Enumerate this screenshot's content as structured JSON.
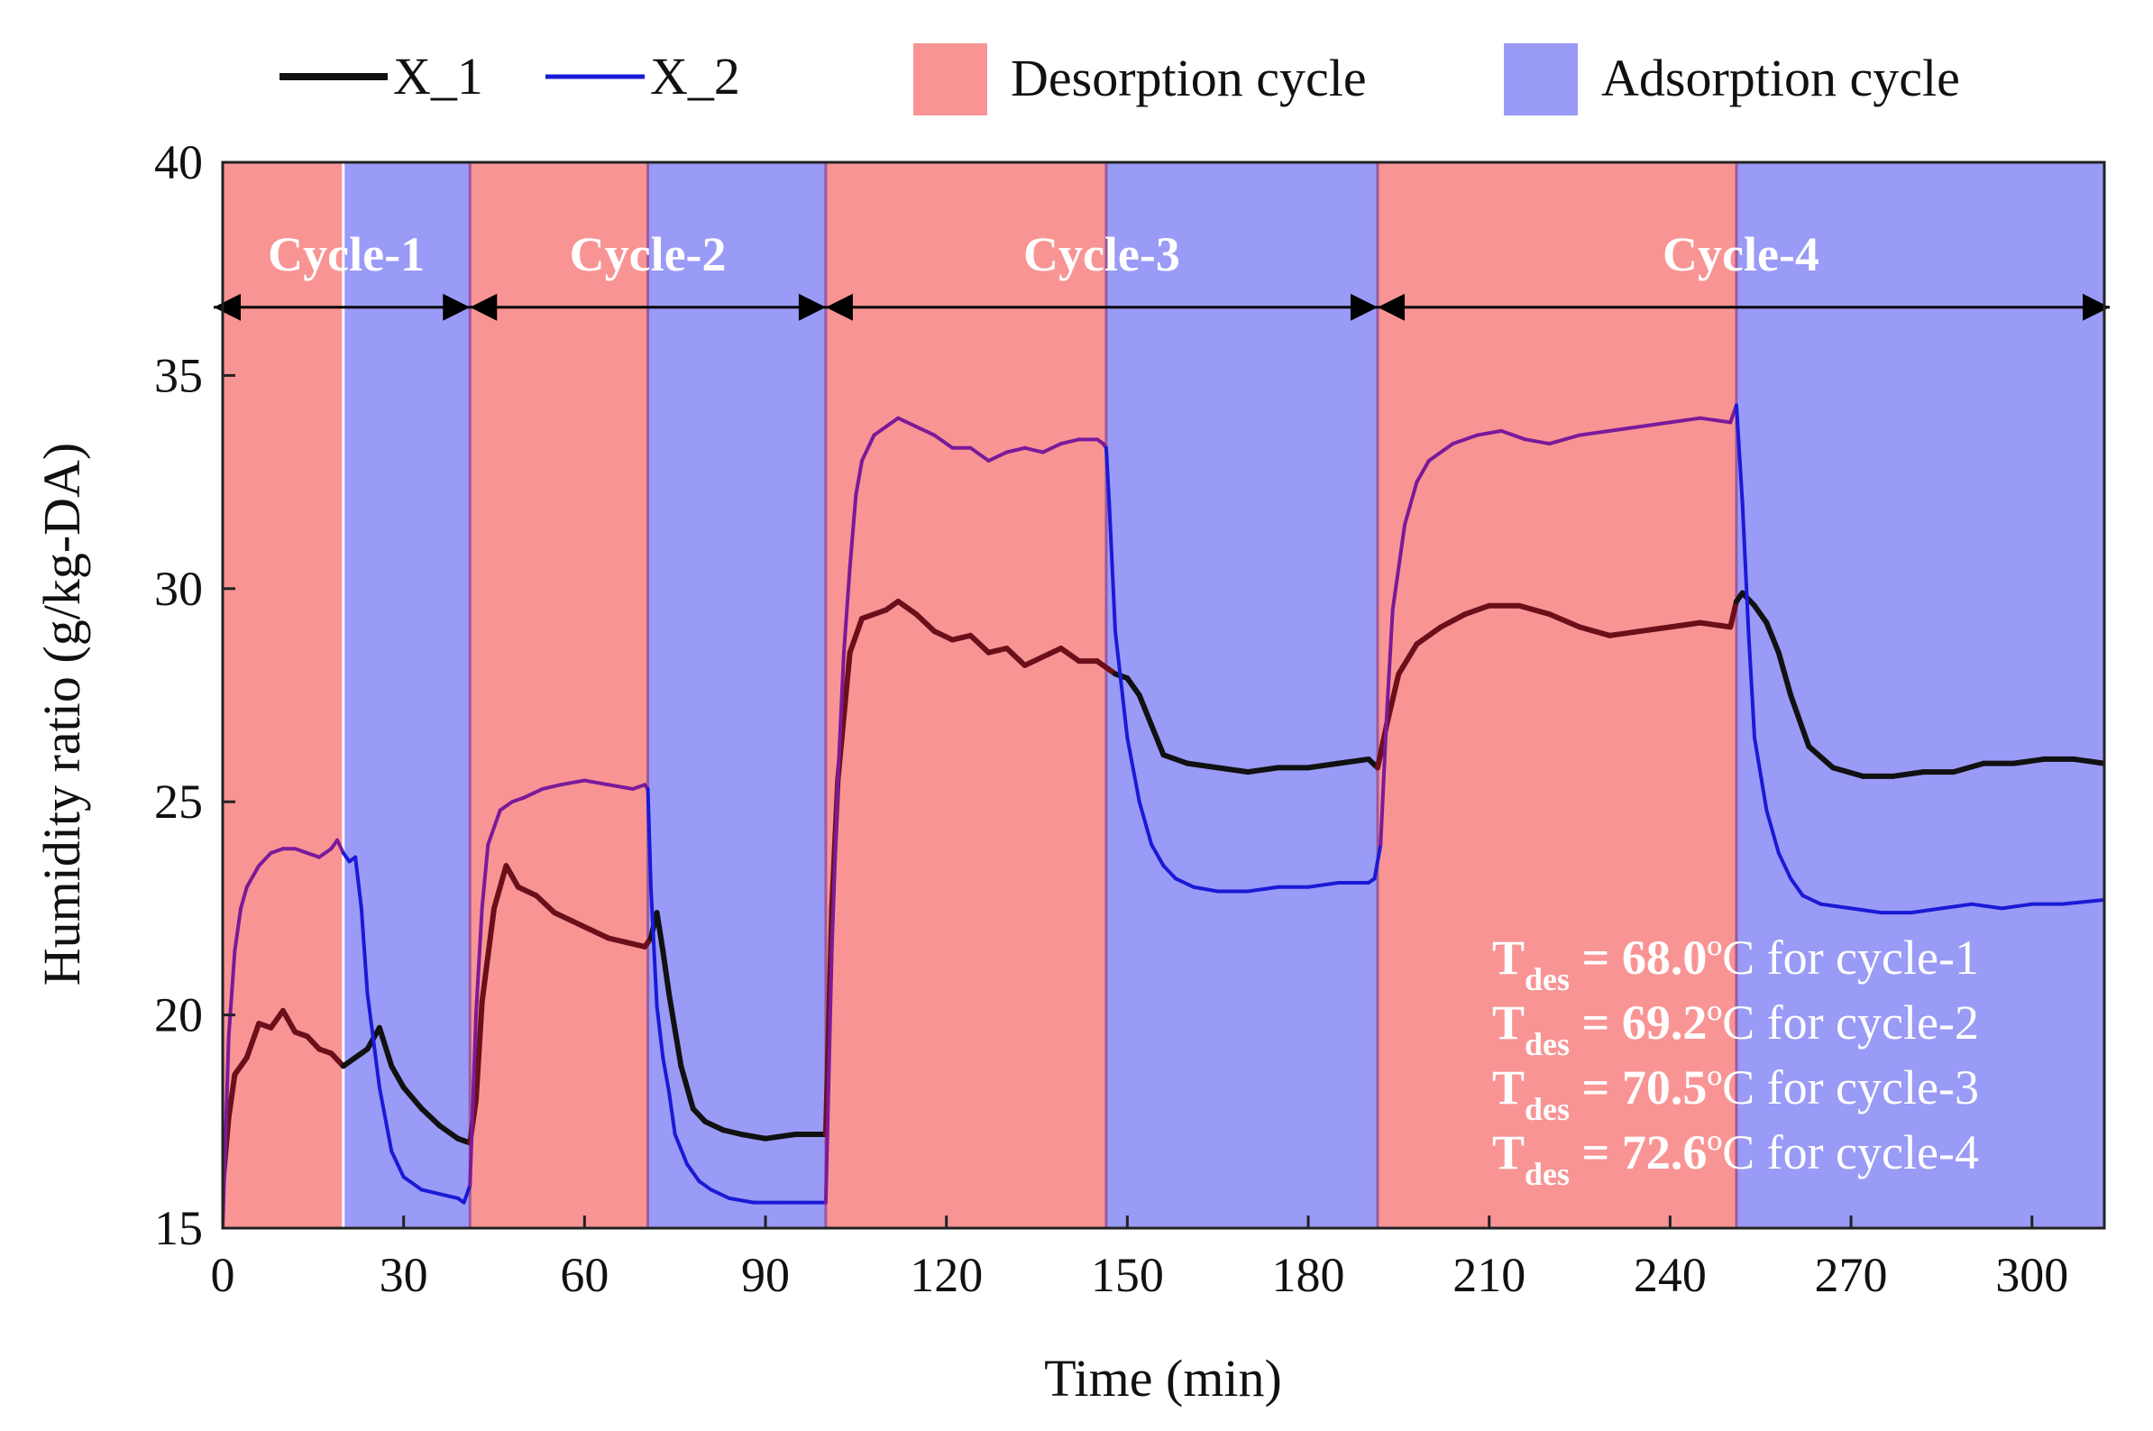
{
  "chart_data": {
    "type": "line",
    "xlabel": "Time (min)",
    "ylabel": "Humidity ratio (g/kg-DA)",
    "xlim": [
      0,
      312
    ],
    "ylim": [
      15,
      40
    ],
    "xticks": [
      0,
      30,
      60,
      90,
      120,
      150,
      180,
      210,
      240,
      270,
      300
    ],
    "yticks": [
      15,
      20,
      25,
      30,
      35,
      40
    ],
    "legend": {
      "placement": "top",
      "entries": [
        {
          "label": "X_1",
          "kind": "line",
          "color": "#111111"
        },
        {
          "label": "X_2",
          "kind": "line",
          "color": "#1a1ad6"
        },
        {
          "label": "Desorption cycle",
          "kind": "patch",
          "color": "#f99494"
        },
        {
          "label": "Adsorption cycle",
          "kind": "patch",
          "color": "#9a9af7"
        }
      ]
    },
    "colors": {
      "desorption": "#f99494",
      "adsorption": "#9a9af7",
      "x1": "#111111",
      "x2": "#1a1ad6",
      "x1_on_desorption": "#6b0f1a",
      "x2_on_desorption": "#7a1a9a"
    },
    "bands": [
      {
        "type": "desorption",
        "start": 0,
        "end": 20
      },
      {
        "type": "adsorption",
        "start": 20,
        "end": 41
      },
      {
        "type": "desorption",
        "start": 41,
        "end": 70.5
      },
      {
        "type": "adsorption",
        "start": 70.5,
        "end": 100
      },
      {
        "type": "desorption",
        "start": 100,
        "end": 146.5
      },
      {
        "type": "adsorption",
        "start": 146.5,
        "end": 191.5
      },
      {
        "type": "desorption",
        "start": 191.5,
        "end": 251
      },
      {
        "type": "adsorption",
        "start": 251,
        "end": 312
      }
    ],
    "cycles": [
      {
        "label": "Cycle-1",
        "start": 0,
        "end": 41
      },
      {
        "label": "Cycle-2",
        "start": 41,
        "end": 100
      },
      {
        "label": "Cycle-3",
        "start": 100,
        "end": 191.5
      },
      {
        "label": "Cycle-4",
        "start": 191.5,
        "end": 312
      }
    ],
    "cycle_arrow_y": 36.6,
    "series": [
      {
        "name": "X_1",
        "x": [
          0,
          1,
          2,
          4,
          6,
          8,
          10,
          12,
          14,
          16,
          18,
          20,
          22,
          24,
          26,
          28,
          30,
          33,
          36,
          39,
          41,
          42,
          43,
          45,
          47,
          49,
          52,
          55,
          58,
          61,
          64,
          67,
          70,
          71,
          72,
          73,
          74,
          76,
          78,
          80,
          83,
          86,
          90,
          95,
          100,
          101,
          102,
          103,
          104,
          106,
          108,
          110,
          112,
          115,
          118,
          121,
          124,
          127,
          130,
          133,
          136,
          139,
          142,
          145,
          148,
          150,
          152,
          154,
          156,
          160,
          165,
          170,
          175,
          180,
          185,
          190,
          191.5,
          193,
          195,
          198,
          202,
          206,
          210,
          215,
          220,
          225,
          230,
          235,
          240,
          245,
          250,
          251,
          252,
          254,
          256,
          258,
          260,
          263,
          267,
          272,
          277,
          282,
          287,
          292,
          297,
          302,
          307,
          312
        ],
        "values": [
          16.0,
          17.6,
          18.6,
          19.0,
          19.8,
          19.7,
          20.1,
          19.6,
          19.5,
          19.2,
          19.1,
          18.8,
          19.0,
          19.2,
          19.7,
          18.8,
          18.3,
          17.8,
          17.4,
          17.1,
          17.0,
          18.0,
          20.3,
          22.5,
          23.5,
          23.0,
          22.8,
          22.4,
          22.2,
          22.0,
          21.8,
          21.7,
          21.6,
          21.8,
          22.4,
          21.5,
          20.5,
          18.8,
          17.8,
          17.5,
          17.3,
          17.2,
          17.1,
          17.2,
          17.2,
          22.5,
          25.5,
          27.0,
          28.5,
          29.3,
          29.4,
          29.5,
          29.7,
          29.4,
          29.0,
          28.8,
          28.9,
          28.5,
          28.6,
          28.2,
          28.4,
          28.6,
          28.3,
          28.3,
          28.0,
          27.9,
          27.5,
          26.8,
          26.1,
          25.9,
          25.8,
          25.7,
          25.8,
          25.8,
          25.9,
          26.0,
          25.8,
          26.8,
          28.0,
          28.7,
          29.1,
          29.4,
          29.6,
          29.6,
          29.4,
          29.1,
          28.9,
          29.0,
          29.1,
          29.2,
          29.1,
          29.7,
          29.9,
          29.6,
          29.2,
          28.5,
          27.5,
          26.3,
          25.8,
          25.6,
          25.6,
          25.7,
          25.7,
          25.9,
          25.9,
          26.0,
          26.0,
          25.9
        ]
      },
      {
        "name": "X_2",
        "x": [
          0,
          1,
          2,
          3,
          4,
          6,
          8,
          10,
          12,
          14,
          16,
          18,
          19,
          20,
          21,
          22,
          23,
          24,
          26,
          28,
          30,
          33,
          36,
          39,
          40,
          41,
          42,
          43,
          44,
          46,
          48,
          50,
          53,
          56,
          60,
          64,
          68,
          70,
          70.5,
          71,
          72,
          73,
          74,
          75,
          77,
          79,
          81,
          84,
          88,
          92,
          96,
          100,
          101,
          102,
          103,
          104,
          105,
          106,
          108,
          110,
          112,
          115,
          118,
          121,
          124,
          127,
          130,
          133,
          136,
          139,
          142,
          145,
          146,
          146.5,
          147,
          148,
          150,
          152,
          154,
          156,
          158,
          161,
          165,
          170,
          175,
          180,
          185,
          190,
          191,
          192,
          193,
          194,
          196,
          198,
          200,
          204,
          208,
          212,
          216,
          220,
          225,
          230,
          235,
          240,
          245,
          250,
          251,
          252,
          253,
          254,
          256,
          258,
          260,
          262,
          265,
          270,
          275,
          280,
          285,
          290,
          295,
          300,
          305,
          312
        ],
        "values": [
          15.0,
          19.5,
          21.5,
          22.5,
          23.0,
          23.5,
          23.8,
          23.9,
          23.9,
          23.8,
          23.7,
          23.9,
          24.1,
          23.8,
          23.6,
          23.7,
          22.5,
          20.5,
          18.3,
          16.8,
          16.2,
          15.9,
          15.8,
          15.7,
          15.6,
          16.0,
          20.0,
          22.5,
          24.0,
          24.8,
          25.0,
          25.1,
          25.3,
          25.4,
          25.5,
          25.4,
          25.3,
          25.4,
          25.3,
          23.0,
          20.2,
          19.0,
          18.2,
          17.2,
          16.5,
          16.1,
          15.9,
          15.7,
          15.6,
          15.6,
          15.6,
          15.6,
          21.5,
          25.5,
          28.5,
          30.5,
          32.2,
          33.0,
          33.6,
          33.8,
          34.0,
          33.8,
          33.6,
          33.3,
          33.3,
          33.0,
          33.2,
          33.3,
          33.2,
          33.4,
          33.5,
          33.5,
          33.4,
          33.3,
          32.0,
          29.0,
          26.5,
          25.0,
          24.0,
          23.5,
          23.2,
          23.0,
          22.9,
          22.9,
          23.0,
          23.0,
          23.1,
          23.1,
          23.2,
          24.0,
          27.0,
          29.5,
          31.5,
          32.5,
          33.0,
          33.4,
          33.6,
          33.7,
          33.5,
          33.4,
          33.6,
          33.7,
          33.8,
          33.9,
          34.0,
          33.9,
          34.3,
          32.0,
          29.0,
          26.5,
          24.8,
          23.8,
          23.2,
          22.8,
          22.6,
          22.5,
          22.4,
          22.4,
          22.5,
          22.6,
          22.5,
          22.6,
          22.6,
          22.7
        ]
      }
    ],
    "annotations": [
      {
        "prefix": "T",
        "sub": "des",
        "mid": " = ",
        "bold": "68.0",
        "suffix": "ºC for cycle-1"
      },
      {
        "prefix": "T",
        "sub": "des",
        "mid": " = ",
        "bold": "69.2",
        "suffix": "ºC for cycle-2"
      },
      {
        "prefix": "T",
        "sub": "des",
        "mid": " = ",
        "bold": "70.5",
        "suffix": "ºC for cycle-3"
      },
      {
        "prefix": "T",
        "sub": "des",
        "mid": " = ",
        "bold": "72.6",
        "suffix": "ºC for cycle-4"
      }
    ]
  }
}
